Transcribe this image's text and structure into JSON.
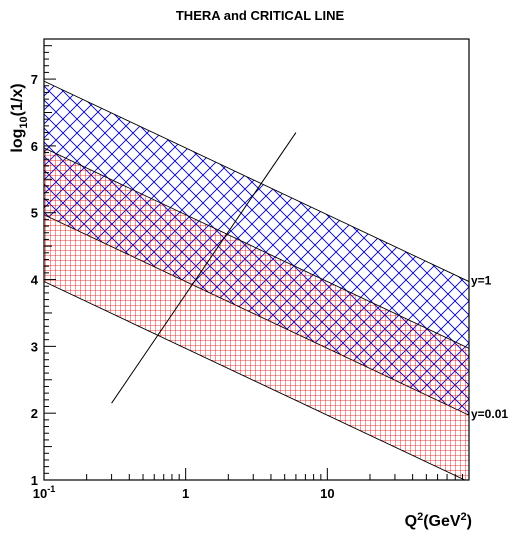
{
  "chart_data": {
    "type": "area",
    "title": "THERA and CRITICAL LINE",
    "xlabel": {
      "base": "Q",
      "sup1": "2",
      "mid": "(GeV",
      "sup2": "2",
      "end": ")"
    },
    "ylabel": {
      "base": "log",
      "sub": "10",
      "end": "(1/x)"
    },
    "x_scale": "log",
    "xlim": [
      0.1,
      100
    ],
    "ylim": [
      1,
      7.6
    ],
    "x_ticks": [
      {
        "value": 0.1,
        "label": "10",
        "sup": "-1"
      },
      {
        "value": 1,
        "label": "1",
        "sup": ""
      },
      {
        "value": 10,
        "label": "10",
        "sup": ""
      }
    ],
    "y_ticks": [
      1,
      2,
      3,
      4,
      5,
      6,
      7
    ],
    "bands": [
      {
        "name": "y=1",
        "color": "#0000cc",
        "hatch": "crosshatch-diagonal",
        "upper": [
          [
            0.1,
            6.97
          ],
          [
            100,
            3.97
          ]
        ],
        "lower": [
          [
            0.1,
            4.97
          ],
          [
            100,
            1.97
          ]
        ]
      },
      {
        "name": "y=0.01",
        "color": "#dd0000",
        "hatch": "grid",
        "upper": [
          [
            0.1,
            5.97
          ],
          [
            100,
            2.97
          ]
        ],
        "lower": [
          [
            0.1,
            3.97
          ],
          [
            100,
            0.97
          ]
        ]
      }
    ],
    "band_labels": [
      {
        "text": "y=1",
        "y": 4.0
      },
      {
        "text": "y=0.01",
        "y": 2.0
      }
    ],
    "critical_line": [
      [
        0.3,
        2.15
      ],
      [
        6,
        6.2
      ]
    ],
    "grid": false,
    "legend": "none"
  }
}
